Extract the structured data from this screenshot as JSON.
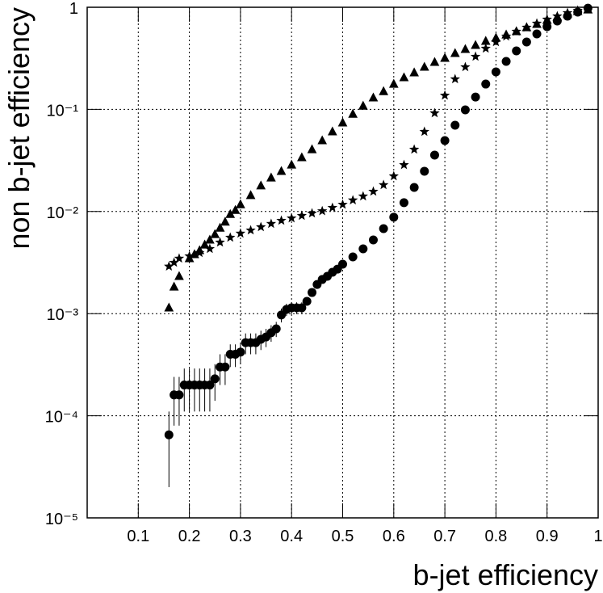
{
  "chart_data": {
    "type": "scatter",
    "x_label": "b-jet efficiency",
    "y_label": "non b-jet efficiency",
    "xlim": [
      0,
      1
    ],
    "ylim": [
      1e-05,
      1
    ],
    "log_y": true,
    "grid": true,
    "xticks": [
      0.1,
      0.2,
      0.3,
      0.4,
      0.5,
      0.6,
      0.7,
      0.8,
      0.9,
      1
    ],
    "yticks": [
      {
        "value": 1e-05,
        "label": "10⁻⁵"
      },
      {
        "value": 0.0001,
        "label": "10⁻⁴"
      },
      {
        "value": 0.001,
        "label": "10⁻³"
      },
      {
        "value": 0.01,
        "label": "10⁻²"
      },
      {
        "value": 0.1,
        "label": "10⁻¹"
      },
      1
    ],
    "series": [
      {
        "marker": "circle",
        "color": "#000000",
        "x": [
          0.16,
          0.17,
          0.18,
          0.19,
          0.2,
          0.21,
          0.22,
          0.23,
          0.24,
          0.25,
          0.26,
          0.27,
          0.28,
          0.29,
          0.3,
          0.31,
          0.32,
          0.33,
          0.34,
          0.35,
          0.36,
          0.37,
          0.38,
          0.39,
          0.4,
          0.41,
          0.42,
          0.43,
          0.44,
          0.45,
          0.46,
          0.47,
          0.48,
          0.49,
          0.5,
          0.52,
          0.54,
          0.56,
          0.58,
          0.6,
          0.62,
          0.64,
          0.66,
          0.68,
          0.7,
          0.72,
          0.74,
          0.76,
          0.78,
          0.8,
          0.82,
          0.84,
          0.86,
          0.88,
          0.9,
          0.92,
          0.94,
          0.96,
          0.98
        ],
        "values": [
          6.5e-05,
          0.00016,
          0.00016,
          0.0002,
          0.0002,
          0.0002,
          0.0002,
          0.0002,
          0.0002,
          0.00023,
          0.0003,
          0.0003,
          0.0004,
          0.0004,
          0.00042,
          0.00052,
          0.00052,
          0.00052,
          0.00056,
          0.00059,
          0.00065,
          0.00071,
          0.00097,
          0.0011,
          0.00114,
          0.00114,
          0.00114,
          0.00132,
          0.00161,
          0.00193,
          0.00216,
          0.00232,
          0.00254,
          0.00273,
          0.00305,
          0.00359,
          0.00431,
          0.00527,
          0.0068,
          0.0088,
          0.0122,
          0.0172,
          0.0248,
          0.0357,
          0.0495,
          0.07,
          0.099,
          0.132,
          0.177,
          0.233,
          0.295,
          0.374,
          0.457,
          0.548,
          0.646,
          0.734,
          0.818,
          0.897,
          0.98
        ],
        "errors": [
          4.5e-05,
          8e-05,
          8e-05,
          9e-05,
          9e-05,
          9e-05,
          9e-05,
          9e-05,
          9e-05,
          9e-05,
          0.0001,
          0.0001,
          0.0001,
          0.0001,
          0.0001,
          0.00012,
          0.00012,
          0.00012,
          0.00012,
          0.00012,
          0.00012,
          0.00012,
          0.00015,
          0.00015,
          0.00015,
          0.00015,
          0.00015,
          null,
          null,
          null,
          null,
          null,
          null,
          null,
          null,
          null,
          null,
          null,
          null,
          null,
          null,
          null,
          null,
          null,
          null,
          null,
          null,
          null,
          null,
          null,
          null,
          null,
          null,
          null,
          null,
          null,
          null,
          null,
          null
        ]
      },
      {
        "marker": "triangle",
        "color": "#000000",
        "x": [
          0.16,
          0.17,
          0.18,
          0.2,
          0.21,
          0.22,
          0.23,
          0.24,
          0.25,
          0.26,
          0.27,
          0.28,
          0.29,
          0.3,
          0.32,
          0.34,
          0.36,
          0.38,
          0.4,
          0.42,
          0.44,
          0.46,
          0.48,
          0.5,
          0.52,
          0.54,
          0.56,
          0.58,
          0.6,
          0.62,
          0.64,
          0.66,
          0.68,
          0.7,
          0.72,
          0.74,
          0.76,
          0.78,
          0.8,
          0.82,
          0.84,
          0.86,
          0.88,
          0.9,
          0.92,
          0.94,
          0.96,
          0.98
        ],
        "values": [
          0.00114,
          0.00183,
          0.00232,
          0.00347,
          0.0038,
          0.00416,
          0.00472,
          0.00527,
          0.00598,
          0.0069,
          0.0079,
          0.0094,
          0.0103,
          0.0117,
          0.0144,
          0.0179,
          0.0214,
          0.0248,
          0.0286,
          0.0338,
          0.0405,
          0.0495,
          0.0605,
          0.074,
          0.09,
          0.108,
          0.13,
          0.15,
          0.177,
          0.205,
          0.229,
          0.26,
          0.29,
          0.318,
          0.354,
          0.388,
          0.425,
          0.466,
          0.5,
          0.538,
          0.579,
          0.634,
          0.682,
          0.747,
          0.804,
          0.865,
          0.912,
          0.946
        ]
      },
      {
        "marker": "star",
        "color": "#000000",
        "x": [
          0.16,
          0.17,
          0.18,
          0.2,
          0.22,
          0.24,
          0.26,
          0.28,
          0.3,
          0.32,
          0.34,
          0.36,
          0.38,
          0.4,
          0.42,
          0.44,
          0.46,
          0.48,
          0.5,
          0.52,
          0.54,
          0.56,
          0.58,
          0.6,
          0.62,
          0.64,
          0.66,
          0.68,
          0.7,
          0.72,
          0.74,
          0.76,
          0.78,
          0.8,
          0.82,
          0.84,
          0.86,
          0.88,
          0.9,
          0.92,
          0.94,
          0.96,
          0.98
        ],
        "values": [
          0.0029,
          0.00316,
          0.00347,
          0.00366,
          0.00394,
          0.00431,
          0.00499,
          0.00556,
          0.0061,
          0.00655,
          0.00705,
          0.00759,
          0.00815,
          0.0086,
          0.0091,
          0.0096,
          0.0101,
          0.0109,
          0.0117,
          0.0129,
          0.0141,
          0.0157,
          0.0182,
          0.0222,
          0.0286,
          0.0405,
          0.0605,
          0.092,
          0.137,
          0.198,
          0.26,
          0.329,
          0.395,
          0.457,
          0.519,
          0.579,
          0.634,
          0.695,
          0.761,
          0.818,
          0.881,
          0.929,
          0.964
        ]
      }
    ]
  }
}
